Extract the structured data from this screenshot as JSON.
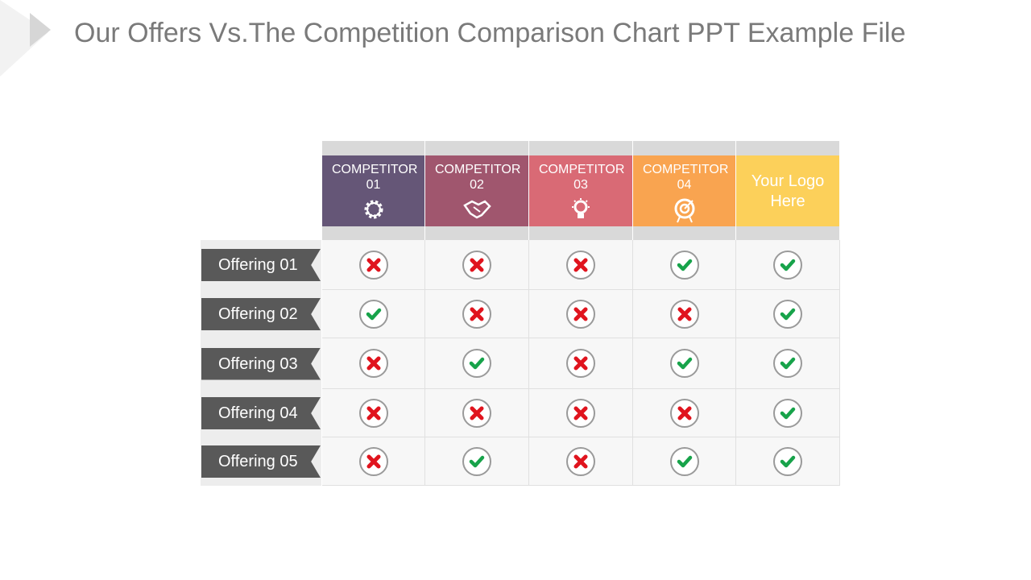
{
  "title": "Our Offers Vs.The Competition Comparison Chart PPT Example File",
  "columns": [
    {
      "label": "COMPETITOR 01",
      "icon": "gear-icon",
      "color": "#655677"
    },
    {
      "label": "COMPETITOR 02",
      "icon": "handshake-icon",
      "color": "#a0566e"
    },
    {
      "label": "COMPETITOR 03",
      "icon": "lightbulb-icon",
      "color": "#d96a75"
    },
    {
      "label": "COMPETITOR 04",
      "icon": "target-icon",
      "color": "#f9a450"
    },
    {
      "label": "Your Logo Here",
      "icon": null,
      "color": "#fcd05a"
    }
  ],
  "rows": [
    {
      "label": "Offering 01",
      "values": [
        false,
        false,
        false,
        true,
        true
      ]
    },
    {
      "label": "Offering 02",
      "values": [
        true,
        false,
        false,
        false,
        true
      ]
    },
    {
      "label": "Offering 03",
      "values": [
        false,
        true,
        false,
        true,
        true
      ]
    },
    {
      "label": "Offering 04",
      "values": [
        false,
        false,
        false,
        false,
        true
      ]
    },
    {
      "label": "Offering 05",
      "values": [
        false,
        true,
        false,
        true,
        true
      ]
    }
  ],
  "colors": {
    "check": "#17a34a",
    "cross": "#e0141e"
  }
}
